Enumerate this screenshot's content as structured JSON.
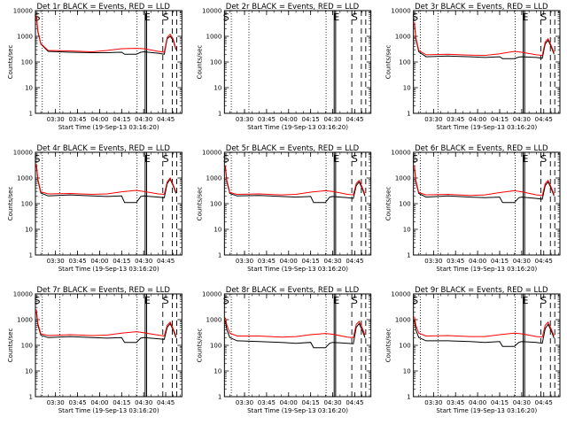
{
  "chart_data": {
    "type": "line",
    "yscale": "log",
    "ylim": [
      1,
      10000
    ],
    "ytick_labels": [
      "1",
      "10",
      "100",
      "1000",
      "10000"
    ],
    "x_tick_labels": [
      "03:30",
      "03:45",
      "04:00",
      "04:15",
      "04:30",
      "04:45"
    ],
    "xlim": [
      "03:16:20",
      "04:56:00"
    ],
    "xlabel": "Start Time (19-Sep-13 03:16:20)",
    "ylabel": "Counts/sec",
    "grid": false,
    "colors": {
      "events": "#000000",
      "lld": "#ff0000"
    },
    "markers": {
      "dotted": [
        "03:21:00",
        "03:33:00",
        "04:25:30"
      ],
      "solid": [
        "04:31:00",
        "04:32:00"
      ],
      "dashed": [
        "04:43:00",
        "04:49:30",
        "04:52:30"
      ],
      "labels": [
        {
          "text": "S",
          "x": "03:17:30"
        },
        {
          "text": "E",
          "x": "04:32:30"
        },
        {
          "text": "S",
          "x": "04:45:00"
        }
      ]
    },
    "panels": [
      {
        "title": "Det 1r BLACK = Events, RED = LLD",
        "series": [
          {
            "name": "BLACK = Events",
            "color": "#000000",
            "x": [
              "03:17:00",
              "03:18:00",
              "03:20:00",
              "03:25:00",
              "03:40:00",
              "03:55:00",
              "04:05:00",
              "04:15:00",
              "04:17:00",
              "04:25:00",
              "04:28:00",
              "04:30:00",
              "04:40:00",
              "04:44:00",
              "04:46:00",
              "04:48:00",
              "04:50:00",
              "04:52:00"
            ],
            "y": [
              6000,
              1500,
              500,
              260,
              240,
              230,
              230,
              240,
              200,
              200,
              240,
              250,
              220,
              200,
              800,
              1000,
              700,
              300
            ]
          },
          {
            "name": "RED = LLD",
            "color": "#ff0000",
            "x": [
              "03:17:00",
              "03:18:00",
              "03:20:00",
              "03:25:00",
              "03:40:00",
              "03:55:00",
              "04:05:00",
              "04:15:00",
              "04:25:00",
              "04:30:00",
              "04:40:00",
              "04:44:00",
              "04:46:00",
              "04:48:00",
              "04:50:00",
              "04:52:00"
            ],
            "y": [
              6500,
              1600,
              520,
              280,
              270,
              250,
              280,
              330,
              340,
              330,
              260,
              240,
              900,
              1200,
              800,
              320
            ]
          }
        ]
      },
      {
        "title": "Det 2r BLACK = Events, RED = LLD",
        "series": []
      },
      {
        "title": "Det 3r BLACK = Events, RED = LLD",
        "series": [
          {
            "name": "BLACK = Events",
            "color": "#000000",
            "x": [
              "03:17:00",
              "03:18:00",
              "03:20:00",
              "03:25:00",
              "03:40:00",
              "03:55:00",
              "04:05:00",
              "04:15:00",
              "04:17:00",
              "04:25:00",
              "04:28:00",
              "04:30:00",
              "04:40:00",
              "04:44:00",
              "04:46:00",
              "04:48:00",
              "04:50:00",
              "04:52:00"
            ],
            "y": [
              3000,
              800,
              250,
              160,
              170,
              160,
              150,
              160,
              135,
              135,
              155,
              160,
              150,
              140,
              500,
              700,
              400,
              200
            ]
          },
          {
            "name": "RED = LLD",
            "color": "#ff0000",
            "x": [
              "03:17:00",
              "03:18:00",
              "03:20:00",
              "03:25:00",
              "03:40:00",
              "03:55:00",
              "04:05:00",
              "04:15:00",
              "04:25:00",
              "04:30:00",
              "04:40:00",
              "04:44:00",
              "04:46:00",
              "04:48:00",
              "04:50:00",
              "04:52:00"
            ],
            "y": [
              3500,
              900,
              280,
              190,
              200,
              185,
              180,
              210,
              260,
              240,
              190,
              180,
              600,
              800,
              450,
              230
            ]
          }
        ]
      },
      {
        "title": "Det 4r BLACK = Events, RED = LLD",
        "series": [
          {
            "name": "BLACK = Events",
            "color": "#000000",
            "x": [
              "03:17:00",
              "03:18:00",
              "03:20:00",
              "03:25:00",
              "03:40:00",
              "03:55:00",
              "04:05:00",
              "04:15:00",
              "04:17:00",
              "04:25:00",
              "04:28:00",
              "04:30:00",
              "04:40:00",
              "04:44:00",
              "04:46:00",
              "04:48:00",
              "04:50:00",
              "04:52:00"
            ],
            "y": [
              3000,
              800,
              260,
              200,
              220,
              200,
              190,
              200,
              110,
              110,
              190,
              200,
              180,
              170,
              600,
              900,
              500,
              250
            ]
          },
          {
            "name": "RED = LLD",
            "color": "#ff0000",
            "x": [
              "03:17:00",
              "03:18:00",
              "03:20:00",
              "03:25:00",
              "03:40:00",
              "03:55:00",
              "04:05:00",
              "04:15:00",
              "04:25:00",
              "04:30:00",
              "04:40:00",
              "04:44:00",
              "04:46:00",
              "04:48:00",
              "04:50:00",
              "04:52:00"
            ],
            "y": [
              3500,
              900,
              290,
              240,
              250,
              230,
              240,
              290,
              330,
              300,
              240,
              230,
              700,
              1000,
              550,
              280
            ]
          }
        ]
      },
      {
        "title": "Det 5r BLACK = Events, RED = LLD",
        "series": [
          {
            "name": "BLACK = Events",
            "color": "#000000",
            "x": [
              "03:17:00",
              "03:18:00",
              "03:20:00",
              "03:25:00",
              "03:40:00",
              "03:55:00",
              "04:05:00",
              "04:15:00",
              "04:17:00",
              "04:25:00",
              "04:28:00",
              "04:30:00",
              "04:40:00",
              "04:44:00",
              "04:46:00",
              "04:48:00",
              "04:50:00",
              "04:52:00"
            ],
            "y": [
              2500,
              700,
              250,
              200,
              210,
              190,
              180,
              190,
              110,
              110,
              180,
              190,
              170,
              160,
              500,
              700,
              400,
              200
            ]
          },
          {
            "name": "RED = LLD",
            "color": "#ff0000",
            "x": [
              "03:17:00",
              "03:18:00",
              "03:20:00",
              "03:25:00",
              "03:40:00",
              "03:55:00",
              "04:05:00",
              "04:15:00",
              "04:25:00",
              "04:30:00",
              "04:40:00",
              "04:44:00",
              "04:46:00",
              "04:48:00",
              "04:50:00",
              "04:52:00"
            ],
            "y": [
              3000,
              800,
              270,
              230,
              240,
              220,
              230,
              280,
              320,
              300,
              230,
              220,
              600,
              800,
              450,
              230
            ]
          }
        ]
      },
      {
        "title": "Det 6r BLACK = Events, RED = LLD",
        "series": [
          {
            "name": "BLACK = Events",
            "color": "#000000",
            "x": [
              "03:17:00",
              "03:18:00",
              "03:20:00",
              "03:25:00",
              "03:40:00",
              "03:55:00",
              "04:05:00",
              "04:15:00",
              "04:17:00",
              "04:25:00",
              "04:28:00",
              "04:30:00",
              "04:40:00",
              "04:44:00",
              "04:46:00",
              "04:48:00",
              "04:50:00",
              "04:52:00"
            ],
            "y": [
              2500,
              700,
              250,
              180,
              200,
              180,
              170,
              180,
              110,
              110,
              170,
              180,
              160,
              150,
              500,
              700,
              400,
              200
            ]
          },
          {
            "name": "RED = LLD",
            "color": "#ff0000",
            "x": [
              "03:17:00",
              "03:18:00",
              "03:20:00",
              "03:25:00",
              "03:40:00",
              "03:55:00",
              "04:05:00",
              "04:15:00",
              "04:25:00",
              "04:30:00",
              "04:40:00",
              "04:44:00",
              "04:46:00",
              "04:48:00",
              "04:50:00",
              "04:52:00"
            ],
            "y": [
              3000,
              800,
              270,
              220,
              230,
              210,
              220,
              270,
              320,
              290,
              220,
              210,
              600,
              800,
              450,
              230
            ]
          }
        ]
      },
      {
        "title": "Det 7r BLACK = Events, RED = LLD",
        "series": [
          {
            "name": "BLACK = Events",
            "color": "#000000",
            "x": [
              "03:17:00",
              "03:18:00",
              "03:20:00",
              "03:25:00",
              "03:40:00",
              "03:55:00",
              "04:05:00",
              "04:15:00",
              "04:17:00",
              "04:25:00",
              "04:28:00",
              "04:30:00",
              "04:40:00",
              "04:44:00",
              "04:46:00",
              "04:48:00",
              "04:50:00",
              "04:52:00"
            ],
            "y": [
              2000,
              600,
              250,
              200,
              220,
              200,
              190,
              200,
              130,
              130,
              190,
              200,
              180,
              170,
              500,
              700,
              400,
              200
            ]
          },
          {
            "name": "RED = LLD",
            "color": "#ff0000",
            "x": [
              "03:17:00",
              "03:18:00",
              "03:20:00",
              "03:25:00",
              "03:40:00",
              "03:55:00",
              "04:05:00",
              "04:15:00",
              "04:25:00",
              "04:30:00",
              "04:40:00",
              "04:44:00",
              "04:46:00",
              "04:48:00",
              "04:50:00",
              "04:52:00"
            ],
            "y": [
              2500,
              700,
              280,
              240,
              260,
              240,
              250,
              300,
              340,
              310,
              250,
              230,
              600,
              800,
              450,
              230
            ]
          }
        ]
      },
      {
        "title": "Det 8r BLACK = Events, RED = LLD",
        "series": [
          {
            "name": "BLACK = Events",
            "color": "#000000",
            "x": [
              "03:17:00",
              "03:18:00",
              "03:20:00",
              "03:25:00",
              "03:40:00",
              "03:55:00",
              "04:05:00",
              "04:15:00",
              "04:17:00",
              "04:25:00",
              "04:28:00",
              "04:30:00",
              "04:40:00",
              "04:44:00",
              "04:46:00",
              "04:48:00",
              "04:50:00",
              "04:52:00"
            ],
            "y": [
              900,
              400,
              200,
              150,
              140,
              130,
              120,
              130,
              80,
              80,
              120,
              130,
              120,
              115,
              500,
              700,
              400,
              200
            ]
          },
          {
            "name": "RED = LLD",
            "color": "#ff0000",
            "x": [
              "03:17:00",
              "03:18:00",
              "03:20:00",
              "03:25:00",
              "03:40:00",
              "03:55:00",
              "04:05:00",
              "04:15:00",
              "04:25:00",
              "04:30:00",
              "04:40:00",
              "04:44:00",
              "04:46:00",
              "04:48:00",
              "04:50:00",
              "04:52:00"
            ],
            "y": [
              1200,
              600,
              300,
              230,
              230,
              210,
              220,
              260,
              290,
              270,
              210,
              200,
              650,
              850,
              500,
              250
            ]
          }
        ]
      },
      {
        "title": "Det 9r BLACK = Events, RED = LLD",
        "series": [
          {
            "name": "BLACK = Events",
            "color": "#000000",
            "x": [
              "03:17:00",
              "03:18:00",
              "03:20:00",
              "03:25:00",
              "03:40:00",
              "03:55:00",
              "04:05:00",
              "04:15:00",
              "04:17:00",
              "04:25:00",
              "04:28:00",
              "04:30:00",
              "04:40:00",
              "04:44:00",
              "04:46:00",
              "04:48:00",
              "04:50:00",
              "04:52:00"
            ],
            "y": [
              1000,
              400,
              200,
              150,
              150,
              140,
              130,
              140,
              90,
              90,
              130,
              140,
              130,
              120,
              450,
              650,
              380,
              190
            ]
          },
          {
            "name": "RED = LLD",
            "color": "#ff0000",
            "x": [
              "03:17:00",
              "03:18:00",
              "03:20:00",
              "03:25:00",
              "03:40:00",
              "03:55:00",
              "04:05:00",
              "04:15:00",
              "04:25:00",
              "04:30:00",
              "04:40:00",
              "04:44:00",
              "04:46:00",
              "04:48:00",
              "04:50:00",
              "04:52:00"
            ],
            "y": [
              1300,
              600,
              300,
              230,
              240,
              220,
              220,
              260,
              300,
              280,
              220,
              210,
              600,
              800,
              450,
              230
            ]
          }
        ]
      }
    ]
  }
}
